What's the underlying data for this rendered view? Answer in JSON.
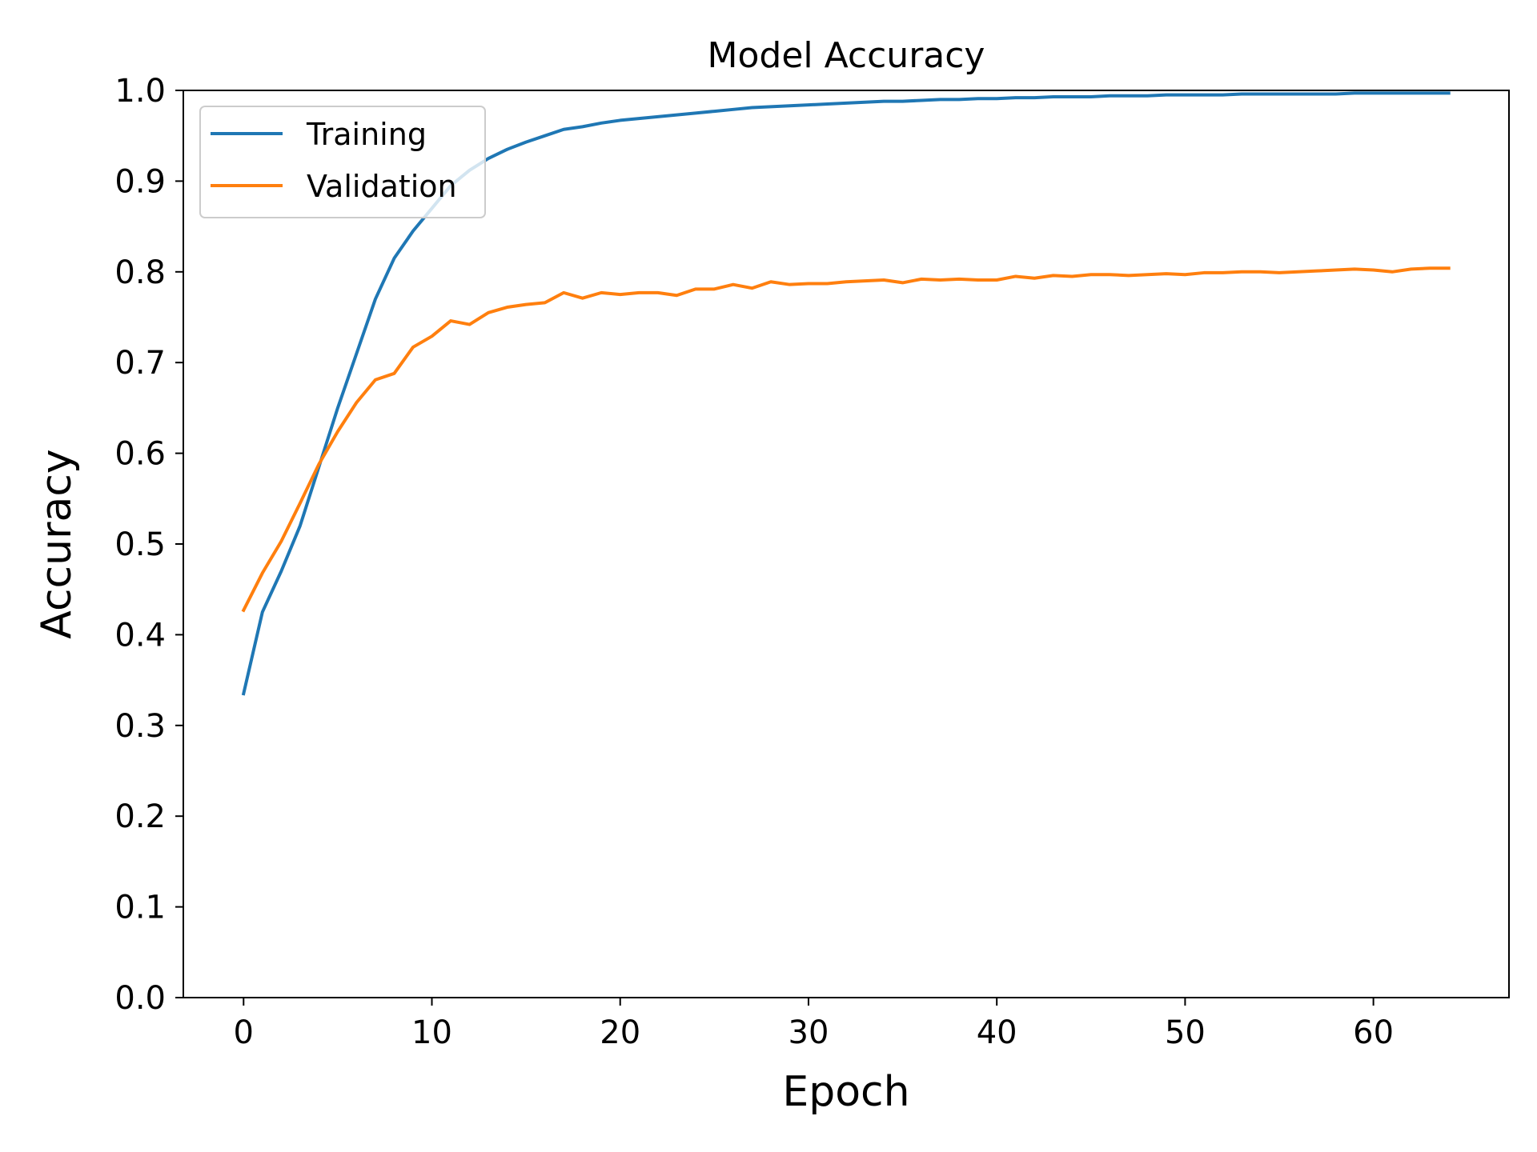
{
  "chart_data": {
    "type": "line",
    "title": "Model Accuracy",
    "xlabel": "Epoch",
    "ylabel": "Accuracy",
    "xlim": [
      -3.2,
      67.2
    ],
    "ylim": [
      0.0,
      1.0
    ],
    "xticks": [
      0,
      10,
      20,
      30,
      40,
      50,
      60
    ],
    "yticks": [
      0.0,
      0.1,
      0.2,
      0.3,
      0.4,
      0.5,
      0.6,
      0.7,
      0.8,
      0.9,
      1.0
    ],
    "xtick_labels": [
      "0",
      "10",
      "20",
      "30",
      "40",
      "50",
      "60"
    ],
    "ytick_labels": [
      "0.0",
      "0.1",
      "0.2",
      "0.3",
      "0.4",
      "0.5",
      "0.6",
      "0.7",
      "0.8",
      "0.9",
      "1.0"
    ],
    "grid": false,
    "legend_position": "upper-left",
    "x": [
      0,
      1,
      2,
      3,
      4,
      5,
      6,
      7,
      8,
      9,
      10,
      11,
      12,
      13,
      14,
      15,
      16,
      17,
      18,
      19,
      20,
      21,
      22,
      23,
      24,
      25,
      26,
      27,
      28,
      29,
      30,
      31,
      32,
      33,
      34,
      35,
      36,
      37,
      38,
      39,
      40,
      41,
      42,
      43,
      44,
      45,
      46,
      47,
      48,
      49,
      50,
      51,
      52,
      53,
      54,
      55,
      56,
      57,
      58,
      59,
      60,
      61,
      62,
      63,
      64
    ],
    "series": [
      {
        "name": "Training",
        "color": "#1f77b4",
        "values": [
          0.335,
          0.425,
          0.47,
          0.52,
          0.585,
          0.65,
          0.71,
          0.77,
          0.815,
          0.845,
          0.87,
          0.895,
          0.912,
          0.925,
          0.935,
          0.943,
          0.95,
          0.957,
          0.96,
          0.964,
          0.967,
          0.969,
          0.971,
          0.973,
          0.975,
          0.977,
          0.979,
          0.981,
          0.982,
          0.983,
          0.984,
          0.985,
          0.986,
          0.987,
          0.988,
          0.988,
          0.989,
          0.99,
          0.99,
          0.991,
          0.991,
          0.992,
          0.992,
          0.993,
          0.993,
          0.993,
          0.994,
          0.994,
          0.994,
          0.995,
          0.995,
          0.995,
          0.995,
          0.996,
          0.996,
          0.996,
          0.996,
          0.996,
          0.996,
          0.997,
          0.997,
          0.997,
          0.997,
          0.997,
          0.997
        ]
      },
      {
        "name": "Validation",
        "color": "#ff7f0e",
        "values": [
          0.427,
          0.468,
          0.503,
          0.545,
          0.588,
          0.624,
          0.656,
          0.681,
          0.688,
          0.717,
          0.729,
          0.746,
          0.742,
          0.755,
          0.761,
          0.764,
          0.766,
          0.777,
          0.771,
          0.777,
          0.775,
          0.777,
          0.777,
          0.774,
          0.781,
          0.781,
          0.786,
          0.782,
          0.789,
          0.786,
          0.787,
          0.787,
          0.789,
          0.79,
          0.791,
          0.788,
          0.792,
          0.791,
          0.792,
          0.791,
          0.791,
          0.795,
          0.793,
          0.796,
          0.795,
          0.797,
          0.797,
          0.796,
          0.797,
          0.798,
          0.797,
          0.799,
          0.799,
          0.8,
          0.8,
          0.799,
          0.8,
          0.801,
          0.802,
          0.803,
          0.802,
          0.8,
          0.803,
          0.804,
          0.804
        ]
      }
    ]
  }
}
